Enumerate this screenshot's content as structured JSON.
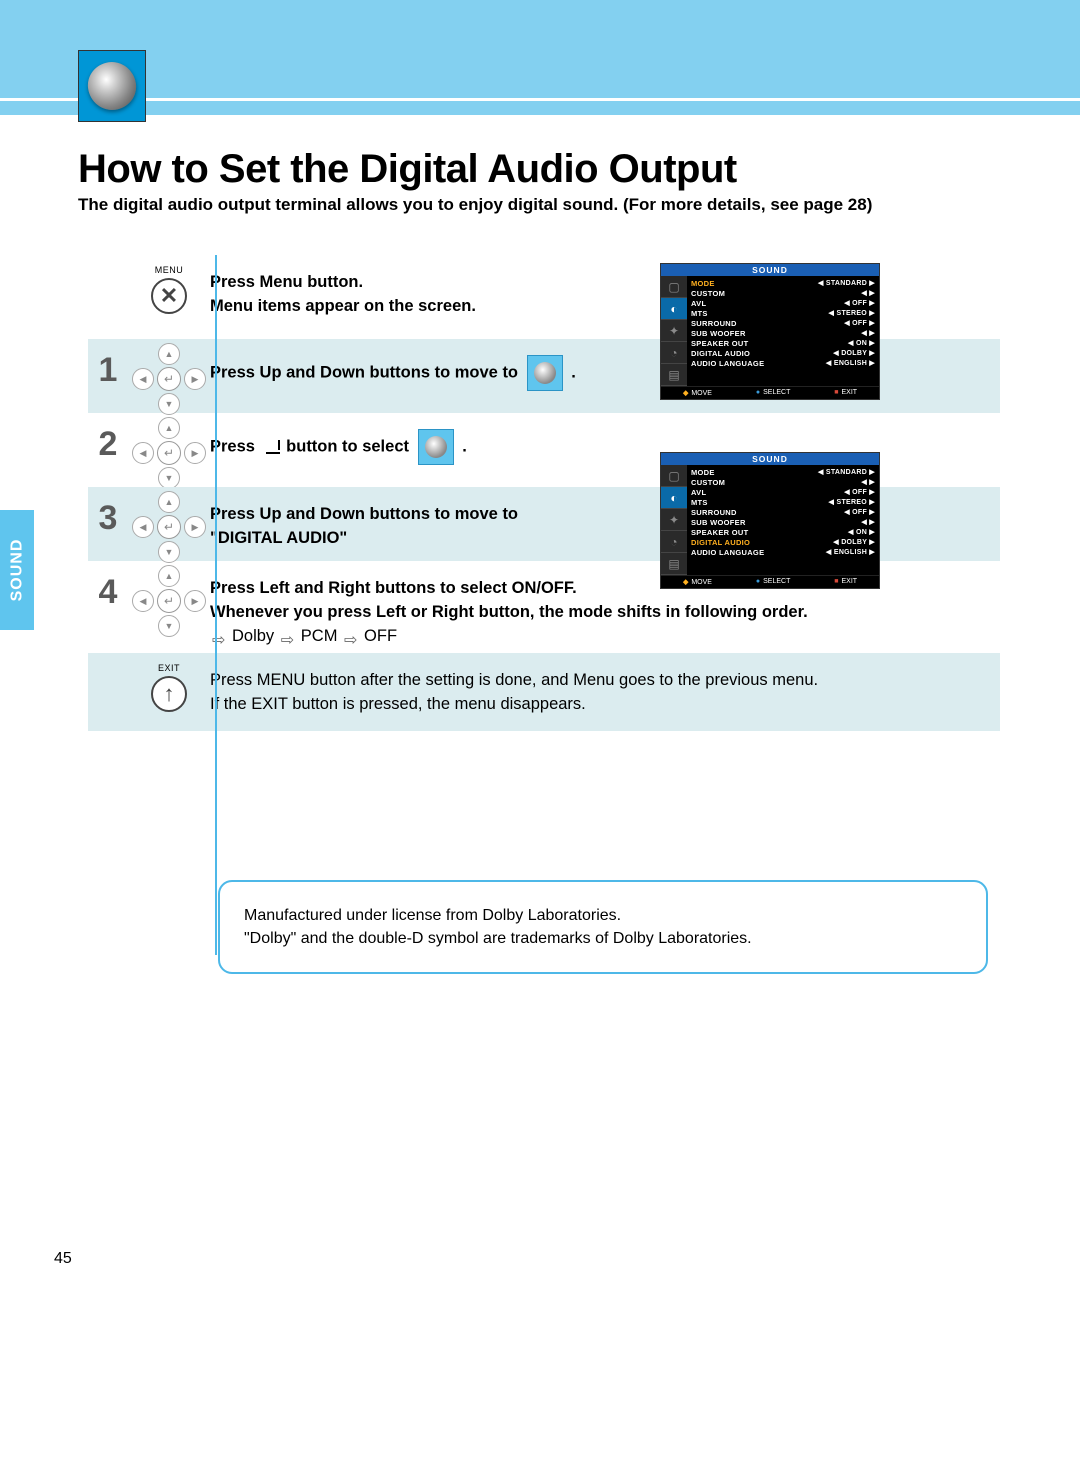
{
  "header": {
    "section_tab": "SOUND"
  },
  "title": "How to Set the Digital Audio Output",
  "subtitle": "The digital audio output terminal allows you to enjoy digital sound. (For more details, see page 28)",
  "steps": {
    "menu": {
      "label": "MENU",
      "line1": "Press Menu button.",
      "line2": "Menu items appear on the screen."
    },
    "s1": {
      "num": "1",
      "text": "Press Up and Down buttons to move to",
      "suffix": "."
    },
    "s2": {
      "num": "2",
      "pre": "Press",
      "mid": "button to select",
      "suffix": "."
    },
    "s3": {
      "num": "3",
      "line1": "Press Up and Down buttons to move to",
      "line2": "\"DIGITAL AUDIO\""
    },
    "s4": {
      "num": "4",
      "line1": "Press Left and Right buttons to select ON/OFF.",
      "line2": "Whenever you press Left or Right button, the mode shifts in following order.",
      "opt1": "Dolby",
      "opt2": "PCM",
      "opt3": "OFF"
    },
    "exit": {
      "label": "EXIT",
      "line1": "Press MENU button after the setting is done, and Menu goes to the previous menu.",
      "line2": "If the EXIT button is pressed, the menu disappears."
    }
  },
  "osd1": {
    "title": "SOUND",
    "rows": [
      {
        "k": "MODE",
        "v": "STANDARD",
        "hl": true
      },
      {
        "k": "CUSTOM",
        "v": "◀ ▶"
      },
      {
        "k": "AVL",
        "v": "OFF"
      },
      {
        "k": "MTS",
        "v": "STEREO"
      },
      {
        "k": "SURROUND",
        "v": "OFF"
      },
      {
        "k": "SUB WOOFER",
        "v": "◀ ▶"
      },
      {
        "k": "SPEAKER OUT",
        "v": "ON"
      },
      {
        "k": "DIGITAL AUDIO",
        "v": "DOLBY"
      },
      {
        "k": "AUDIO LANGUAGE",
        "v": "ENGLISH"
      }
    ],
    "footer": {
      "move": "MOVE",
      "select": "SELECT",
      "exit": "EXIT"
    }
  },
  "osd2": {
    "title": "SOUND",
    "rows": [
      {
        "k": "MODE",
        "v": "STANDARD"
      },
      {
        "k": "CUSTOM",
        "v": "◀ ▶"
      },
      {
        "k": "AVL",
        "v": "OFF"
      },
      {
        "k": "MTS",
        "v": "STEREO"
      },
      {
        "k": "SURROUND",
        "v": "OFF"
      },
      {
        "k": "SUB WOOFER",
        "v": "◀ ▶"
      },
      {
        "k": "SPEAKER OUT",
        "v": "ON"
      },
      {
        "k": "DIGITAL AUDIO",
        "v": "DOLBY",
        "hl": true
      },
      {
        "k": "AUDIO LANGUAGE",
        "v": "ENGLISH"
      }
    ],
    "footer": {
      "move": "MOVE",
      "select": "SELECT",
      "exit": "EXIT"
    }
  },
  "note": {
    "line1": "Manufactured under license from Dolby Laboratories.",
    "line2": "\"Dolby\" and the double-D symbol are trademarks of Dolby Laboratories."
  },
  "page_number": "45",
  "colors": {
    "accent": "#83d0f0",
    "accent2": "#5fc5ee",
    "line": "#4db8e8",
    "shade": "#dbecef",
    "osd_title": "#1a5fb4",
    "highlight": "#ffb020"
  }
}
